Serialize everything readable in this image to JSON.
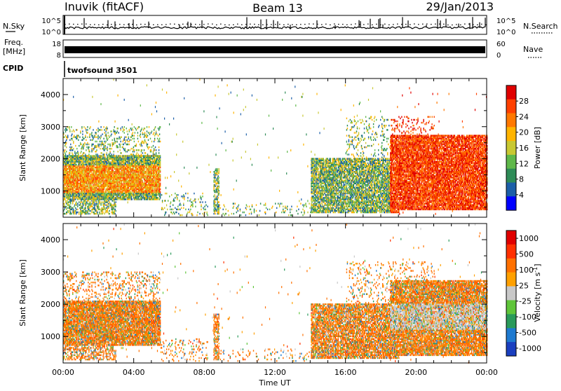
{
  "header": {
    "station": "Inuvik (fitACF)",
    "beam": "Beam 13",
    "date": "29/Jan/2013"
  },
  "top_panels": {
    "nsky_label": "N.Sky",
    "nsky_ticks": [
      "10^5",
      "10^0"
    ],
    "nsearch_label": "N.Search",
    "nsearch_ticks": [
      "10^5",
      "10^0"
    ],
    "freq_label_1": "Freq.",
    "freq_label_2": "[MHz]",
    "freq_ticks": [
      "18",
      "8"
    ],
    "nave_label": "Nave",
    "nave_ticks": [
      "60",
      "0"
    ],
    "cpid_label": "CPID",
    "cpid_value": "twofsound 3501"
  },
  "colors": {
    "power_scale": [
      "#0000ff",
      "#1c5fa8",
      "#2e8b57",
      "#5fb84a",
      "#c8c832",
      "#ffb400",
      "#ff7800",
      "#ff4000",
      "#e00000"
    ],
    "velocity_scale": [
      "#1a3fbf",
      "#1e7ad0",
      "#2a9a5a",
      "#5fc53a",
      "#c8c8c8",
      "#ffa000",
      "#ff7000",
      "#ff3000",
      "#e00000"
    ]
  },
  "chart_data": [
    {
      "type": "heatmap",
      "name": "power",
      "ylabel": "Slant Range [km]",
      "ylim": [
        180,
        4500
      ],
      "yticks": [
        1000,
        2000,
        3000,
        4000
      ],
      "xlim": [
        0,
        24
      ],
      "colorbar_label": "Power [dB]",
      "colorbar_ticks": [
        "28",
        "24",
        "20",
        "16",
        "12",
        "8",
        "4"
      ],
      "colorbar_range": [
        0,
        32
      ]
    },
    {
      "type": "heatmap",
      "name": "velocity",
      "ylabel": "Slant Range [km]",
      "ylim": [
        180,
        4500
      ],
      "yticks": [
        1000,
        2000,
        3000,
        4000
      ],
      "xlim": [
        0,
        24
      ],
      "xlabel": "Time UT",
      "xticks": [
        "00:00",
        "04:00",
        "08:00",
        "12:00",
        "16:00",
        "20:00",
        "00:00"
      ],
      "colorbar_label": "Velocity [m s^-1]",
      "colorbar_ticks": [
        "1000",
        "500",
        "100",
        "25",
        "-25",
        "-100",
        "-500",
        "-1000"
      ]
    }
  ]
}
